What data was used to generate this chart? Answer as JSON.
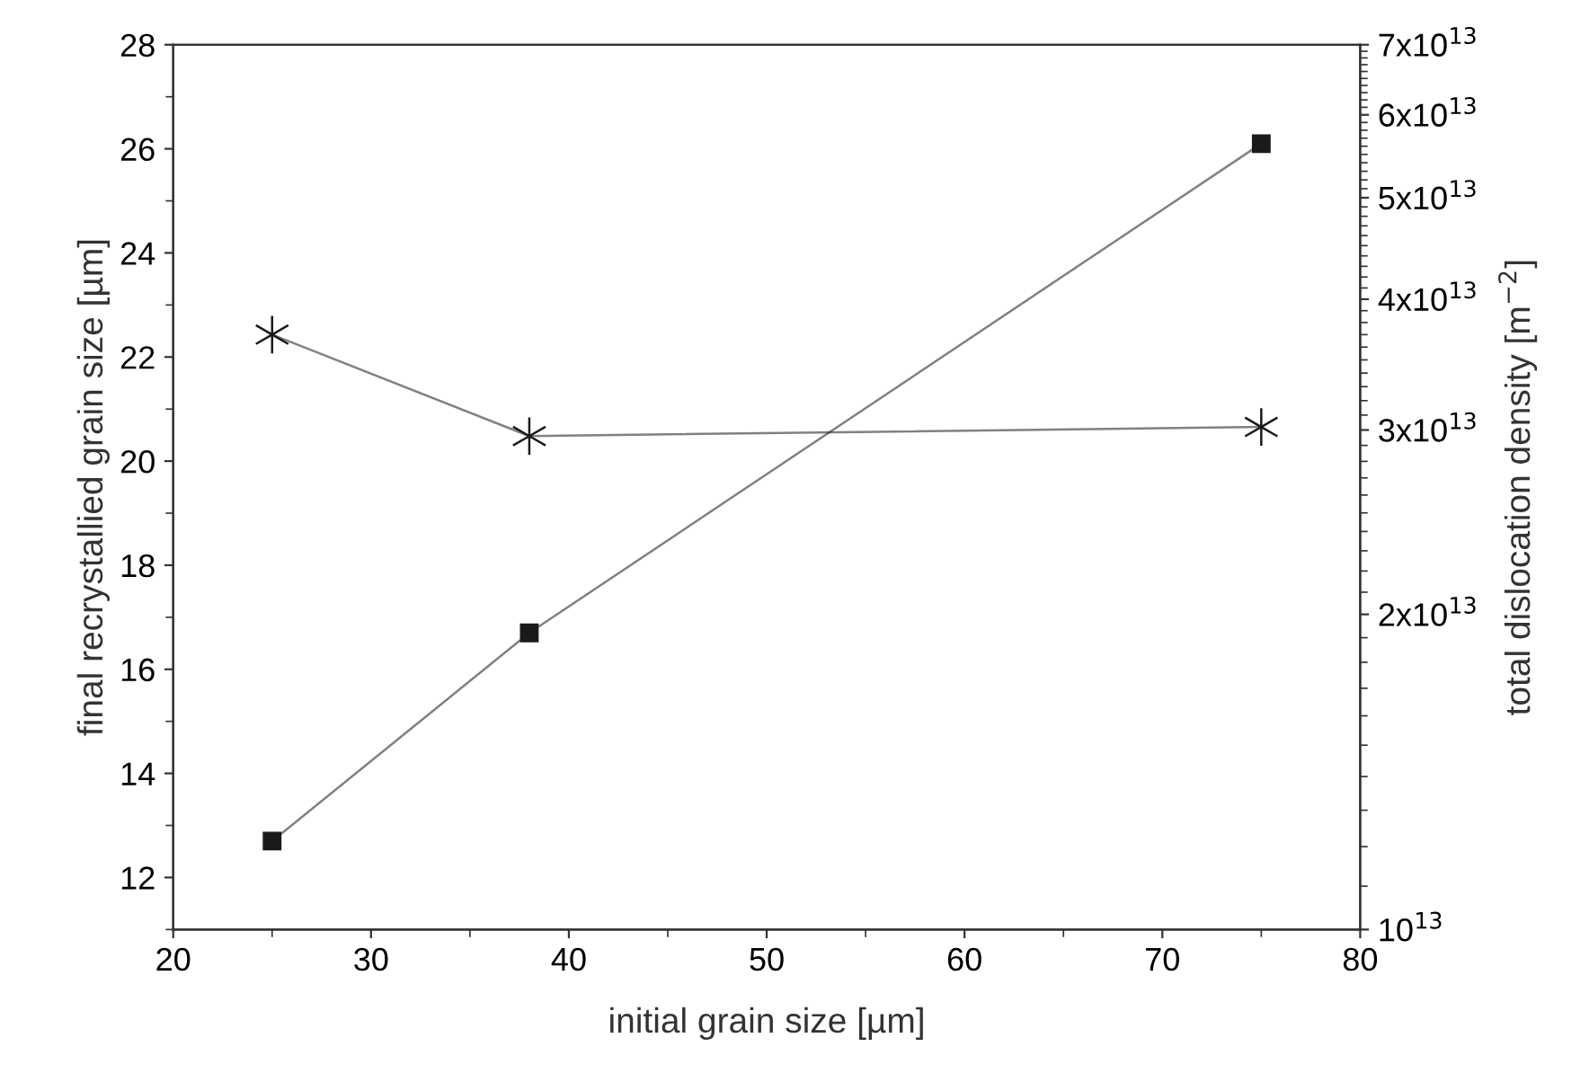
{
  "chart_data": {
    "type": "line",
    "xlabel": "initial grain size [µm]",
    "ylabel": "final recrystallied grain size [µm]",
    "y2label": "total dislocation density [m$^{−2}$]",
    "x": [
      25,
      38,
      75
    ],
    "series": [
      {
        "color": "#1a1a1a",
        "marker": "square",
        "values": [
          12.7,
          16.7,
          26.1
        ]
      },
      {
        "color": "#1a1a1a",
        "marker": "cross",
        "axis": "y2",
        "values": [
          37000000000000.0,
          29600000000000.0,
          30200000000000.0
        ]
      }
    ],
    "xlim": [
      20,
      80
    ],
    "xticks": [
      20,
      30,
      40,
      50,
      60,
      70,
      80
    ],
    "ylim": [
      11,
      28
    ],
    "yticks": [
      12,
      14,
      16,
      18,
      20,
      22,
      24,
      26,
      28
    ],
    "log": "y2",
    "y2lim": [
      10000000000000.0,
      70000000000000.0
    ],
    "y2ticks": [
      {
        "value": 10000000000000.0,
        "label": "10$^{13}$"
      },
      {
        "value": 20000000000000.0,
        "label": "2x10$^{13}$"
      },
      {
        "value": 30000000000000.0,
        "label": "3x10$^{13}$"
      },
      {
        "value": 40000000000000.0,
        "label": "4x10$^{13}$"
      },
      {
        "value": 50000000000000.0,
        "label": "5x10$^{13}$"
      },
      {
        "value": 60000000000000.0,
        "label": "6x10$^{13}$"
      },
      {
        "value": 70000000000000.0,
        "label": "7x10$^{13}$"
      }
    ],
    "grid": false,
    "legend": false,
    "line_style": "solid"
  }
}
